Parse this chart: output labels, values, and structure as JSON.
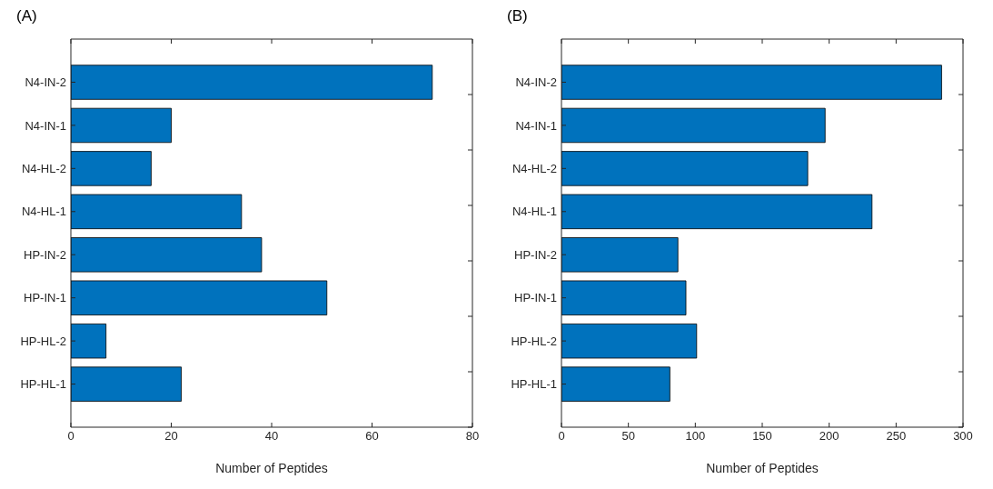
{
  "chart_data": [
    {
      "type": "bar",
      "title": "(A)",
      "orientation": "horizontal",
      "categories": [
        "N4-IN-2",
        "N4-IN-1",
        "N4-HL-2",
        "N4-HL-1",
        "HP-IN-2",
        "HP-IN-1",
        "HP-HL-2",
        "HP-HL-1"
      ],
      "values": [
        72,
        20,
        16,
        34,
        38,
        51,
        7,
        22
      ],
      "color": "#0072bd",
      "xlabel": "Number of Peptides",
      "xlim": [
        0,
        80
      ],
      "xticks": [
        0,
        20,
        40,
        60,
        80
      ]
    },
    {
      "type": "bar",
      "title": "(B)",
      "orientation": "horizontal",
      "categories": [
        "N4-IN-2",
        "N4-IN-1",
        "N4-HL-2",
        "N4-HL-1",
        "HP-IN-2",
        "HP-IN-1",
        "HP-HL-2",
        "HP-HL-1"
      ],
      "values": [
        284,
        197,
        184,
        232,
        87,
        93,
        101,
        81
      ],
      "color": "#0072bd",
      "xlabel": "Number of Peptides",
      "xlim": [
        0,
        300
      ],
      "xticks": [
        0,
        50,
        100,
        150,
        200,
        250,
        300
      ]
    }
  ]
}
